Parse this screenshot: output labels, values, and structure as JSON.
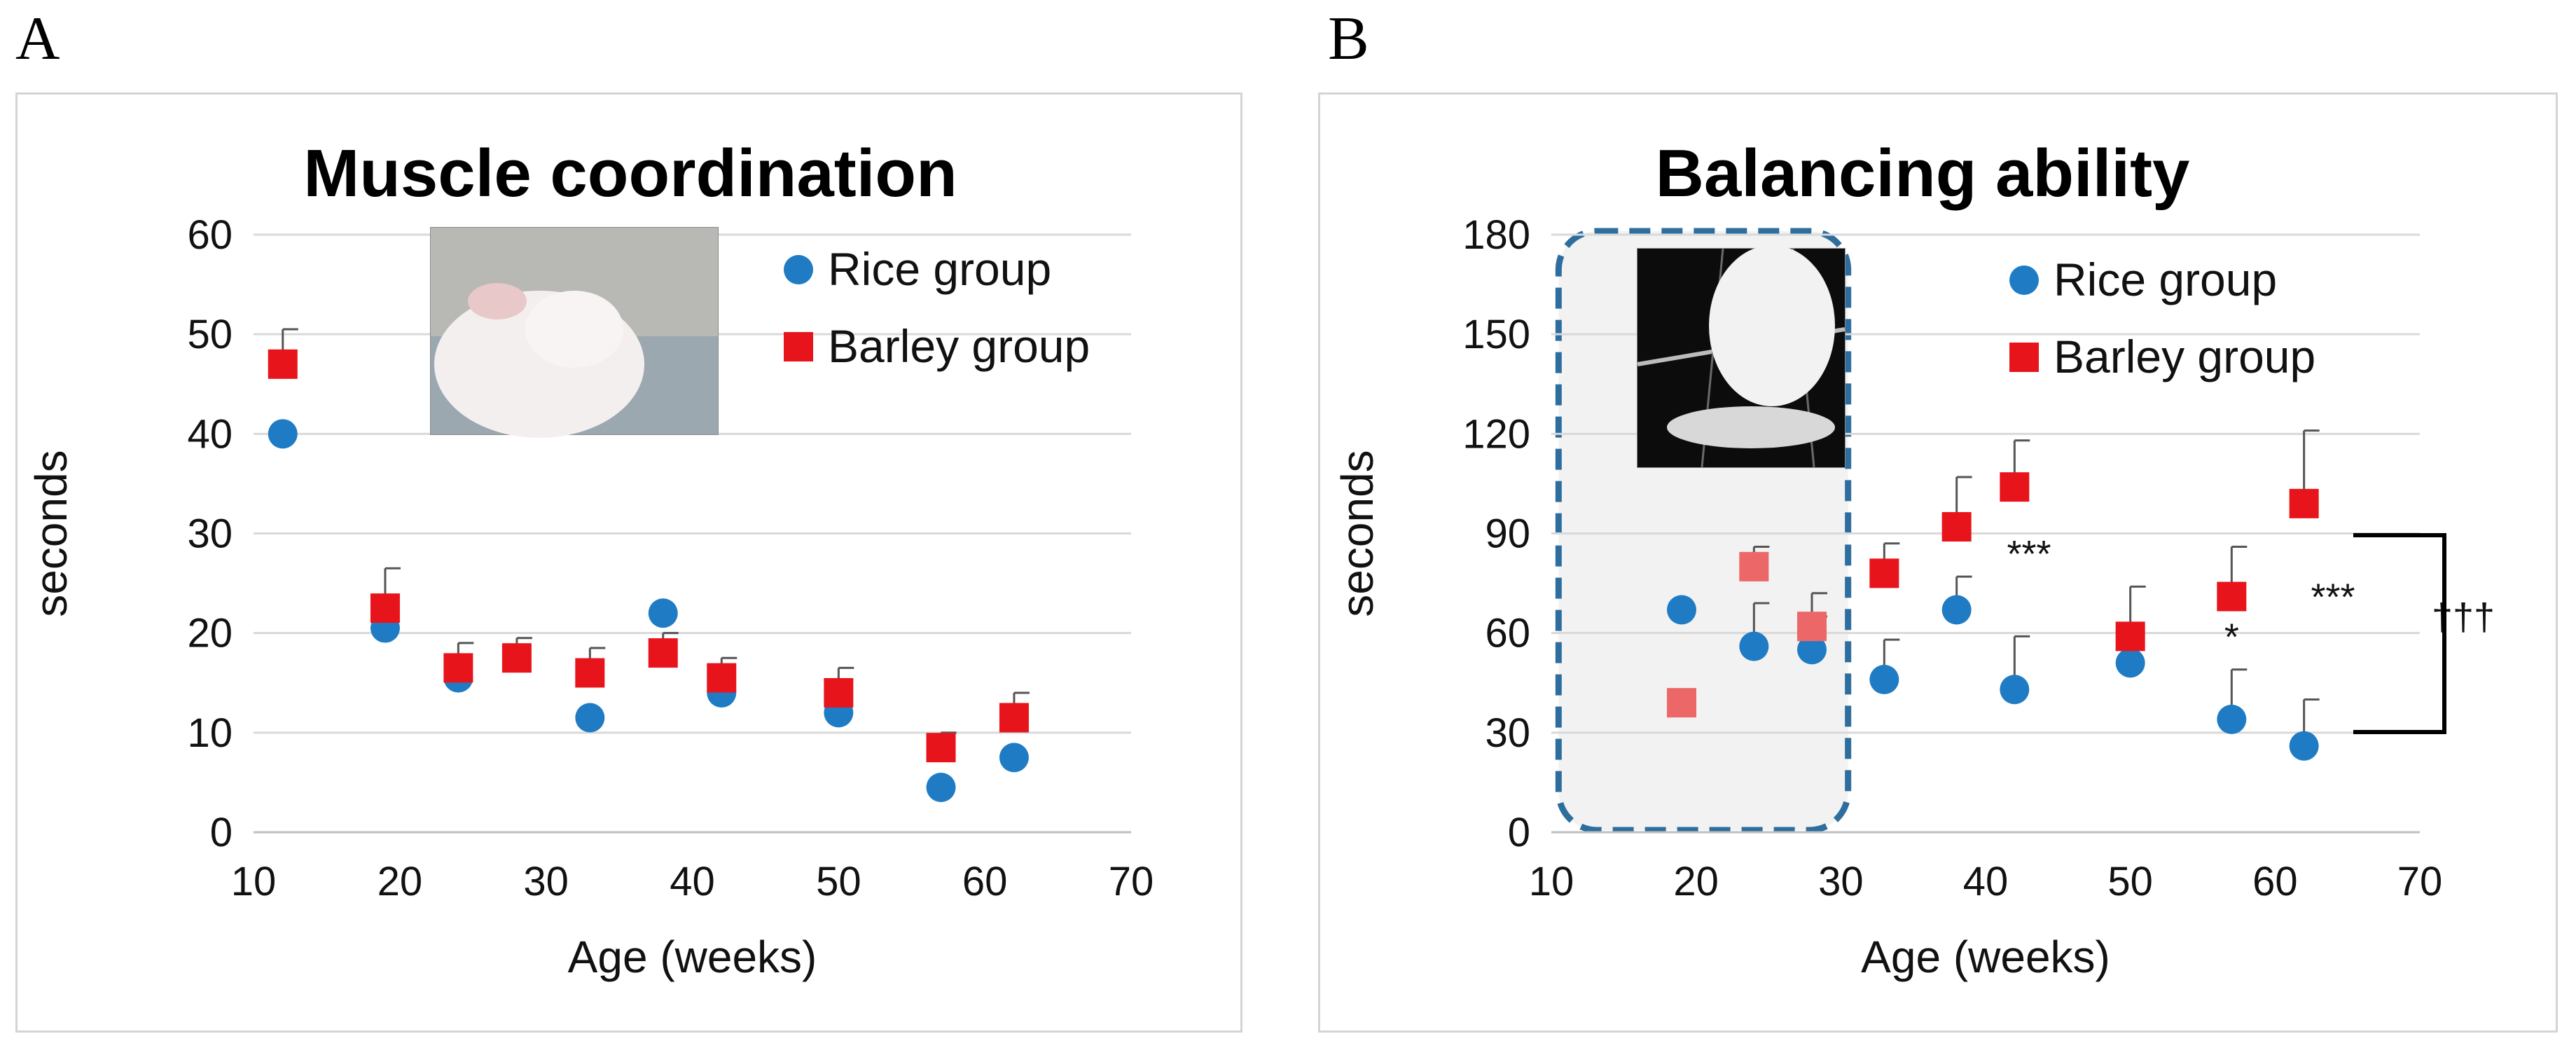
{
  "panels": {
    "a": {
      "letter": "A"
    },
    "b": {
      "letter": "B"
    }
  },
  "photo_descriptions": {
    "a": "mouse-on-rotarod-photo",
    "b": "mouse-on-balance-beam-photo"
  },
  "colors": {
    "rice": "#1f7cc4",
    "barley": "#e8141c",
    "barley_faded": "#ec6868",
    "highlight_border": "#2e6e9e",
    "highlight_fill": "#f2f2f2",
    "grid": "#d9d9d9"
  },
  "chart_data": [
    {
      "type": "scatter",
      "title": "Muscle coordination",
      "xlabel": "Age (weeks)",
      "ylabel": "seconds",
      "xlim": [
        10,
        70
      ],
      "ylim": [
        0,
        60
      ],
      "xticks": [
        "10",
        "20",
        "30",
        "40",
        "50",
        "60",
        "70"
      ],
      "yticks": [
        "0",
        "10",
        "20",
        "30",
        "40",
        "50",
        "60"
      ],
      "grid": true,
      "legend_position": "top-right",
      "series": [
        {
          "name": "Rice group",
          "marker": "circle",
          "x": [
            12,
            19,
            24,
            33,
            38,
            42,
            50,
            57,
            62
          ],
          "y": [
            40,
            20.5,
            15.5,
            11.5,
            22,
            14,
            12,
            4.5,
            7.5
          ],
          "err": [
            0,
            0,
            0,
            0,
            0,
            0,
            0,
            0,
            0
          ]
        },
        {
          "name": "Barley group",
          "marker": "square",
          "x": [
            12,
            19,
            24,
            28,
            33,
            38,
            42,
            50,
            57,
            62
          ],
          "y": [
            47,
            22.5,
            16.5,
            17.5,
            16,
            18,
            15.5,
            14,
            8.5,
            11.5
          ],
          "err": [
            3.5,
            4,
            2.5,
            2,
            2.5,
            2,
            2,
            2.5,
            1.5,
            2.5
          ]
        }
      ],
      "annotations": []
    },
    {
      "type": "scatter",
      "title": "Balancing ability",
      "xlabel": "Age (weeks)",
      "ylabel": "seconds",
      "xlim": [
        10,
        70
      ],
      "ylim": [
        0,
        180
      ],
      "xticks": [
        "10",
        "20",
        "30",
        "40",
        "50",
        "60",
        "70"
      ],
      "yticks": [
        "0",
        "30",
        "60",
        "90",
        "120",
        "150",
        "180"
      ],
      "grid": true,
      "legend_position": "top-right",
      "highlight_region_x": [
        10.5,
        30.5
      ],
      "series": [
        {
          "name": "Rice group",
          "marker": "circle",
          "x": [
            19,
            24,
            28,
            33,
            38,
            42,
            50,
            57,
            62
          ],
          "y": [
            67,
            56,
            55,
            46,
            67,
            43,
            51,
            34,
            26
          ],
          "err": [
            0,
            13,
            10,
            12,
            10,
            16,
            0,
            15,
            14
          ]
        },
        {
          "name": "Barley group",
          "marker": "square",
          "x": [
            19,
            24,
            28,
            33,
            38,
            42,
            50,
            57,
            62
          ],
          "y": [
            39,
            80,
            62,
            78,
            92,
            104,
            59,
            71,
            99
          ],
          "err": [
            0,
            6,
            10,
            9,
            15,
            14,
            15,
            15,
            22
          ]
        }
      ],
      "annotations": [
        {
          "text": "***",
          "x": 43,
          "y": 80
        },
        {
          "text": "*",
          "x": 57,
          "y": 55
        },
        {
          "text": "***",
          "x": 64,
          "y": 67
        },
        {
          "text": "†††",
          "x": 73,
          "y": 61
        }
      ]
    }
  ]
}
